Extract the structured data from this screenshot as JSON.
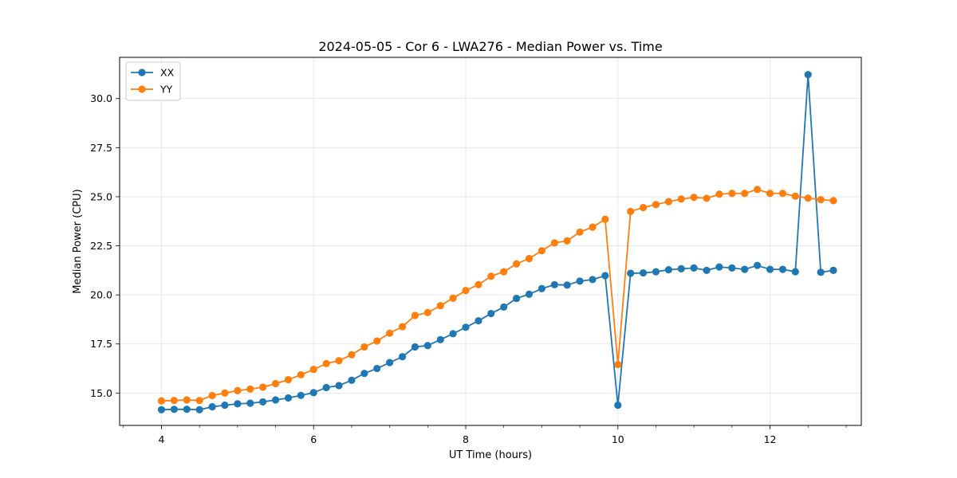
{
  "chart_data": {
    "type": "line",
    "title": "2024-05-05 - Cor 6 - LWA276 - Median Power vs. Time",
    "xlabel": "UT Time (hours)",
    "ylabel": "Median Power (CPU)",
    "xlim": [
      3.45,
      13.2
    ],
    "ylim": [
      13.35,
      32.1
    ],
    "xticks": [
      4,
      6,
      8,
      10,
      12
    ],
    "xtick_labels": [
      "4",
      "6",
      "8",
      "10",
      "12"
    ],
    "yticks": [
      15.0,
      17.5,
      20.0,
      22.5,
      25.0,
      27.5,
      30.0
    ],
    "ytick_labels": [
      "15.0",
      "17.5",
      "20.0",
      "22.5",
      "25.0",
      "27.5",
      "30.0"
    ],
    "grid": true,
    "legend_position": "top-left",
    "x": [
      4.0,
      4.167,
      4.333,
      4.5,
      4.667,
      4.833,
      5.0,
      5.167,
      5.333,
      5.5,
      5.667,
      5.833,
      6.0,
      6.167,
      6.333,
      6.5,
      6.667,
      6.833,
      7.0,
      7.167,
      7.333,
      7.5,
      7.667,
      7.833,
      8.0,
      8.167,
      8.333,
      8.5,
      8.667,
      8.833,
      9.0,
      9.167,
      9.333,
      9.5,
      9.667,
      9.833,
      10.0,
      10.167,
      10.333,
      10.5,
      10.667,
      10.833,
      11.0,
      11.167,
      11.333,
      11.5,
      11.667,
      11.833,
      12.0,
      12.167,
      12.333,
      12.5,
      12.667,
      12.833
    ],
    "series": [
      {
        "name": "XX",
        "color": "#1f77b4",
        "values": [
          14.15,
          14.17,
          14.17,
          14.15,
          14.3,
          14.38,
          14.45,
          14.48,
          14.55,
          14.65,
          14.75,
          14.88,
          15.02,
          15.28,
          15.38,
          15.65,
          16.0,
          16.25,
          16.55,
          16.85,
          17.35,
          17.42,
          17.72,
          18.02,
          18.35,
          18.68,
          19.05,
          19.38,
          19.82,
          20.03,
          20.32,
          20.52,
          20.5,
          20.7,
          20.78,
          20.98,
          14.38,
          21.1,
          21.12,
          21.18,
          21.28,
          21.33,
          21.37,
          21.25,
          21.42,
          21.37,
          21.3,
          21.5,
          21.3,
          21.3,
          21.18,
          31.22,
          21.15,
          21.25
        ]
      },
      {
        "name": "YY",
        "color": "#ff7f0e",
        "values": [
          14.6,
          14.62,
          14.65,
          14.62,
          14.87,
          15.0,
          15.12,
          15.2,
          15.3,
          15.48,
          15.68,
          15.93,
          16.2,
          16.5,
          16.65,
          16.95,
          17.35,
          17.65,
          18.05,
          18.38,
          18.95,
          19.1,
          19.45,
          19.83,
          20.22,
          20.52,
          20.95,
          21.18,
          21.58,
          21.85,
          22.25,
          22.65,
          22.75,
          23.2,
          23.45,
          23.85,
          16.45,
          24.25,
          24.45,
          24.6,
          24.75,
          24.88,
          24.97,
          24.92,
          25.13,
          25.17,
          25.17,
          25.37,
          25.17,
          25.17,
          25.03,
          24.93,
          24.85,
          24.8
        ]
      }
    ]
  }
}
